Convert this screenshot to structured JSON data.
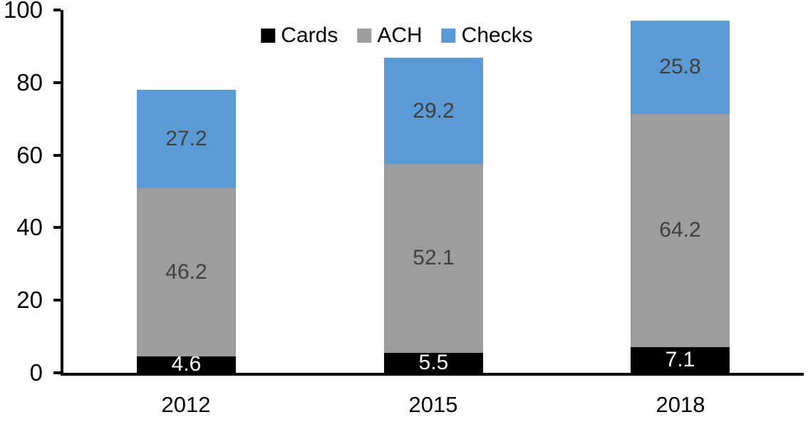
{
  "chart_data": {
    "type": "bar",
    "stacked": true,
    "title": "",
    "categories": [
      "2012",
      "2015",
      "2018"
    ],
    "series": [
      {
        "name": "Cards",
        "values": [
          4.6,
          5.5,
          7.1
        ],
        "color": "#000000",
        "label_color": "#FFFFFF"
      },
      {
        "name": "ACH",
        "values": [
          46.2,
          52.1,
          64.2
        ],
        "color": "#9D9D9D",
        "label_color": "#3F3F3F"
      },
      {
        "name": "Checks",
        "values": [
          27.2,
          29.2,
          25.8
        ],
        "color": "#5B9BD5",
        "label_color": "#3F3F3F"
      }
    ],
    "totals": [
      78.0,
      86.8,
      97.1
    ],
    "xlabel": "",
    "ylabel": "",
    "ylim": [
      0,
      100
    ],
    "y_ticks": [
      0,
      20,
      40,
      60,
      80,
      100
    ],
    "grid": false,
    "legend_position": "top",
    "legend_labels": [
      "Cards",
      "ACH",
      "Checks"
    ],
    "axis_color": "#000000",
    "background_color": "#FFFFFF",
    "data_labels_shown": true
  }
}
